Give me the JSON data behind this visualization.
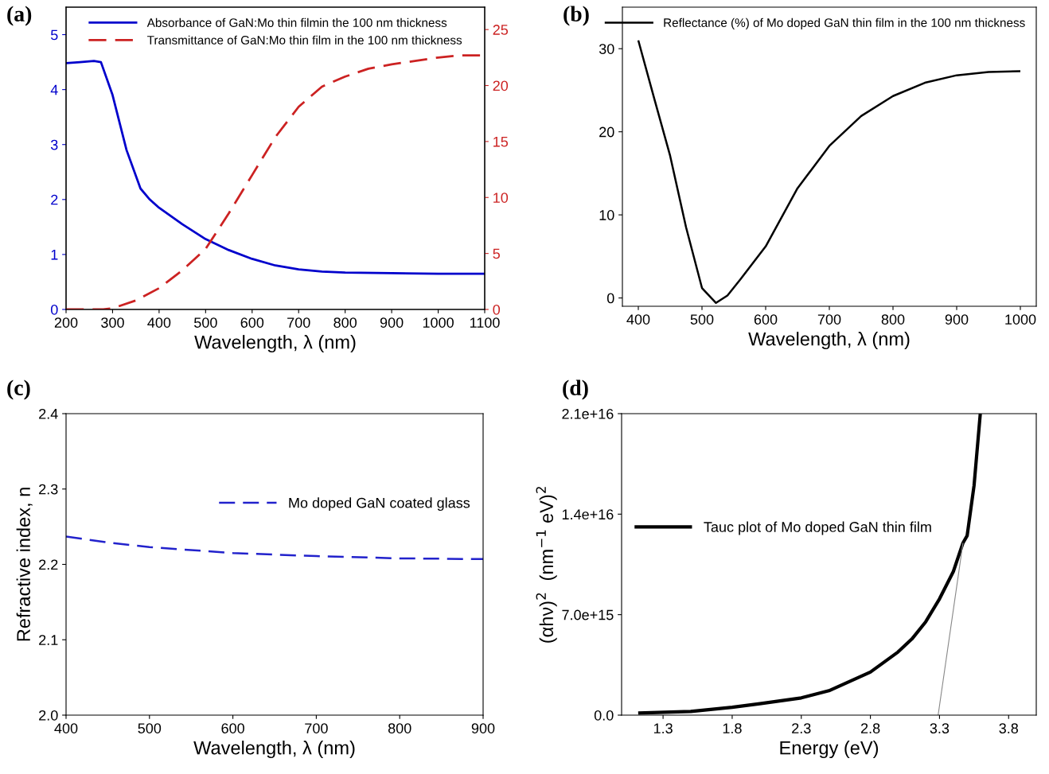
{
  "chart_data": [
    {
      "type": "line",
      "title": "(a)",
      "xlabel": "Wavelength, λ (nm)",
      "xlim": [
        200,
        1100
      ],
      "xticks": [
        200,
        300,
        400,
        500,
        600,
        700,
        800,
        900,
        1000,
        1100
      ],
      "ylim": [
        0,
        5.5
      ],
      "yticks": [
        0,
        1,
        2,
        3,
        4,
        5
      ],
      "y2lim": [
        0,
        27
      ],
      "y2ticks": [
        0,
        5,
        10,
        15,
        20,
        25
      ],
      "legend": "top",
      "series": [
        {
          "name": "Absorbance of GaN:Mo thin filmin the 100 nm thickness",
          "color": "#0000cc",
          "line_style": "solid",
          "x": [
            200,
            230,
            260,
            275,
            300,
            330,
            360,
            380,
            400,
            450,
            500,
            550,
            600,
            650,
            700,
            750,
            800,
            900,
            1000,
            1100
          ],
          "values": [
            4.48,
            4.5,
            4.52,
            4.5,
            3.9,
            2.9,
            2.2,
            2.0,
            1.85,
            1.55,
            1.28,
            1.08,
            0.92,
            0.8,
            0.73,
            0.69,
            0.67,
            0.66,
            0.65,
            0.65
          ]
        },
        {
          "name": "Transmittance of GaN:Mo thin film in the 100 nm thickness",
          "color": "#cc2222",
          "line_style": "dashed",
          "axis": "y2",
          "x": [
            200,
            280,
            300,
            350,
            400,
            450,
            500,
            550,
            600,
            650,
            700,
            750,
            800,
            850,
            900,
            950,
            1000,
            1050,
            1100
          ],
          "values": [
            0,
            0,
            0.1,
            0.8,
            1.9,
            3.5,
            5.4,
            8.6,
            12.0,
            15.4,
            18.1,
            19.9,
            20.8,
            21.5,
            21.9,
            22.2,
            22.5,
            22.7,
            22.7
          ]
        }
      ]
    },
    {
      "type": "line",
      "title": "(b)",
      "xlabel": "Wavelength, λ (nm)",
      "xlim": [
        375,
        1025
      ],
      "xticks": [
        400,
        500,
        600,
        700,
        800,
        900,
        1000
      ],
      "ylim": [
        -1,
        35
      ],
      "yticks": [
        0,
        10,
        20,
        30
      ],
      "legend": "top right",
      "series": [
        {
          "name": "Reflectance (%) of Mo doped GaN thin film in the 100 nm thickness",
          "color": "#000000",
          "line_style": "solid",
          "x": [
            400,
            425,
            450,
            475,
            500,
            522,
            540,
            560,
            600,
            650,
            700,
            750,
            800,
            850,
            900,
            950,
            1000
          ],
          "values": [
            31,
            24,
            17.1,
            8.5,
            1.2,
            -0.6,
            0.3,
            2.2,
            6.2,
            13.2,
            18.3,
            21.9,
            24.3,
            25.9,
            26.8,
            27.2,
            27.3
          ]
        }
      ]
    },
    {
      "type": "line",
      "title": "(c)",
      "xlabel": "Wavelength, λ (nm)",
      "ylabel": "Refractive index, n",
      "xlim": [
        400,
        900
      ],
      "xticks": [
        400,
        500,
        600,
        700,
        800,
        900
      ],
      "ylim": [
        2.0,
        2.4
      ],
      "yticks": [
        {
          "value": 2.0,
          "label": "2.0"
        },
        2.1,
        2.2,
        2.3,
        2.4
      ],
      "legend": "right",
      "series": [
        {
          "name": "Mo doped GaN coated glass",
          "color": "#2222cc",
          "line_style": "dashed",
          "x": [
            400,
            450,
            500,
            600,
            700,
            800,
            900
          ],
          "values": [
            2.237,
            2.229,
            2.223,
            2.215,
            2.211,
            2.208,
            2.207
          ]
        }
      ]
    },
    {
      "type": "line",
      "title": "(d)",
      "xlabel": "Energy (eV)",
      "ylabel": "(αhν)$^{2}$  (nm$^{−1}$ eV)$^{2}$",
      "xlim": [
        1.0,
        4.0
      ],
      "xticks": [
        1.3,
        1.8,
        2.3,
        2.8,
        3.3,
        3.8
      ],
      "ylim": [
        0,
        2.1e+16
      ],
      "yticks": [
        {
          "value": 0,
          "label": "0.0"
        },
        {
          "value": 7000000000000000.0,
          "label": "7.0e+15"
        },
        {
          "value": 1.4e+16,
          "label": "1.4e+16"
        },
        {
          "value": 2.1e+16,
          "label": "2.1e+16"
        }
      ],
      "legend": "left",
      "series": [
        {
          "name": "Tauc plot of Mo doped GaN thin film",
          "color": "#000000",
          "line_style": "solid",
          "x": [
            1.12,
            1.5,
            1.8,
            2.0,
            2.3,
            2.5,
            2.8,
            3.0,
            3.1,
            3.2,
            3.3,
            3.4,
            3.47,
            3.5,
            3.55,
            3.595
          ],
          "values": [
            150000000000000.0,
            260000000000000.0,
            550000000000000.0,
            800000000000000.0,
            1200000000000000.0,
            1700000000000000.0,
            3000000000000000.0,
            4400000000000000.0,
            5300000000000000.0,
            6500000000000000.0,
            8100000000000000.0,
            1e+16,
            1.2e+16,
            1.25e+16,
            1.6e+16,
            2.1e+16
          ]
        },
        {
          "type": "line",
          "color": "#888888",
          "line_style": "solid",
          "x": [
            3.29,
            3.47
          ],
          "values": [
            0,
            1.2e+16
          ]
        }
      ]
    }
  ]
}
